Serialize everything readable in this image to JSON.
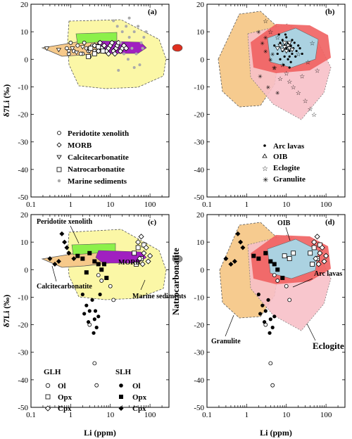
{
  "figure": {
    "x_label": "Li (ppm)",
    "y_label": "δ7Li (‰)",
    "x_ticks": [
      "0.1",
      "1",
      "10",
      "100"
    ],
    "y_ticks": [
      "20",
      "10",
      "0",
      "-10",
      "-20",
      "-30",
      "-40",
      "-50"
    ]
  },
  "chart_data": [
    {
      "panel": "(a)",
      "type": "scatter",
      "x_scale": "log",
      "xlim": [
        0.1,
        300
      ],
      "ylim": [
        -50,
        20
      ],
      "legend_position": "center",
      "legend": [
        "Peridotite xenolith",
        "MORB",
        "Calcitecarbonatite",
        "Natrocarbonatite",
        "Marine sediments"
      ],
      "series": [
        {
          "name": "Peridotite xenolith",
          "marker": "open-circle",
          "points": [
            [
              0.8,
              4
            ],
            [
              1.2,
              3
            ],
            [
              1.5,
              5
            ],
            [
              2,
              2
            ],
            [
              2.5,
              4
            ],
            [
              3,
              1
            ],
            [
              3.5,
              5
            ],
            [
              4,
              3
            ],
            [
              1,
              6
            ],
            [
              1.8,
              2
            ],
            [
              2.2,
              6
            ],
            [
              3,
              4
            ],
            [
              0.9,
              2
            ],
            [
              5,
              3
            ],
            [
              6,
              4
            ],
            [
              7,
              3
            ],
            [
              4.5,
              5
            ],
            [
              2.8,
              3
            ]
          ]
        },
        {
          "name": "MORB",
          "marker": "open-diamond",
          "points": [
            [
              3,
              4
            ],
            [
              4,
              5
            ],
            [
              5,
              3
            ],
            [
              6,
              4
            ],
            [
              7,
              5
            ],
            [
              8,
              3
            ],
            [
              9,
              4
            ],
            [
              10,
              5
            ],
            [
              12,
              3
            ],
            [
              14,
              4
            ],
            [
              15,
              5
            ],
            [
              18,
              3
            ],
            [
              20,
              4
            ],
            [
              22,
              5
            ],
            [
              5.5,
              6
            ],
            [
              9,
              2
            ],
            [
              11,
              6
            ],
            [
              13,
              2
            ],
            [
              16,
              6
            ],
            [
              25,
              4
            ]
          ]
        },
        {
          "name": "Calcitecarbonatite",
          "marker": "open-triangle",
          "points": [
            [
              0.25,
              4
            ],
            [
              0.5,
              3.5
            ],
            [
              0.9,
              3
            ],
            [
              1.4,
              2.5
            ],
            [
              2,
              4.5
            ],
            [
              3,
              3
            ],
            [
              1.1,
              4
            ]
          ]
        },
        {
          "name": "Natrocarbonatite",
          "marker": "open-square",
          "points": [
            [
              3.2,
              4
            ],
            [
              4,
              2
            ],
            [
              5,
              4.5
            ],
            [
              6.5,
              3
            ],
            [
              2.8,
              1
            ]
          ]
        },
        {
          "name": "Marine sediments",
          "marker": "gray-dot",
          "points": [
            [
              12,
              14
            ],
            [
              15,
              12
            ],
            [
              20,
              10
            ],
            [
              25,
              12
            ],
            [
              30,
              8
            ],
            [
              40,
              10
            ],
            [
              50,
              12
            ],
            [
              60,
              6
            ],
            [
              30,
              15
            ],
            [
              18,
              6
            ],
            [
              35,
              4
            ],
            [
              45,
              2
            ],
            [
              70,
              8
            ],
            [
              22,
              2
            ],
            [
              28,
              0
            ],
            [
              55,
              -2
            ],
            [
              16,
              -4
            ],
            [
              40,
              -3
            ],
            [
              65,
              4
            ],
            [
              80,
              10
            ]
          ]
        }
      ]
    },
    {
      "panel": "(b)",
      "type": "scatter",
      "x_scale": "log",
      "xlim": [
        0.1,
        300
      ],
      "ylim": [
        -50,
        20
      ],
      "legend_position": "center",
      "legend": [
        "Arc lavas",
        "OIB",
        "Eclogite",
        "Granulite"
      ],
      "series": [
        {
          "name": "Arc lavas",
          "marker": "small-dot",
          "points": [
            [
              5,
              5
            ],
            [
              6,
              4
            ],
            [
              7,
              6
            ],
            [
              8,
              3
            ],
            [
              9,
              5
            ],
            [
              10,
              4
            ],
            [
              11,
              6
            ],
            [
              12,
              3
            ],
            [
              13,
              5
            ],
            [
              14,
              2
            ],
            [
              15,
              4
            ],
            [
              16,
              6
            ],
            [
              18,
              3
            ],
            [
              20,
              5
            ],
            [
              6,
              2
            ],
            [
              8,
              7
            ],
            [
              10,
              8
            ],
            [
              12,
              1
            ],
            [
              14,
              7
            ],
            [
              9,
              1
            ],
            [
              7,
              0
            ],
            [
              11,
              0
            ],
            [
              13,
              -1
            ],
            [
              17,
              1
            ],
            [
              22,
              4
            ],
            [
              25,
              2
            ],
            [
              6.5,
              9
            ],
            [
              9.5,
              9
            ],
            [
              12,
              -3
            ],
            [
              8.5,
              -2
            ]
          ]
        },
        {
          "name": "OIB",
          "marker": "open-triangle",
          "points": [
            [
              6,
              4
            ],
            [
              7,
              5
            ],
            [
              8,
              3.5
            ],
            [
              9,
              4.5
            ],
            [
              10,
              3
            ],
            [
              11,
              5
            ],
            [
              12,
              4
            ],
            [
              14,
              3.5
            ],
            [
              9,
              6
            ],
            [
              12,
              6
            ]
          ]
        },
        {
          "name": "Eclogite",
          "marker": "open-star",
          "points": [
            [
              3,
              14
            ],
            [
              4,
              10
            ],
            [
              6,
              8
            ],
            [
              8,
              -2
            ],
            [
              10,
              -5
            ],
            [
              12,
              -8
            ],
            [
              15,
              -10
            ],
            [
              20,
              -12
            ],
            [
              25,
              -6
            ],
            [
              30,
              -15
            ],
            [
              40,
              -18
            ],
            [
              50,
              -20
            ],
            [
              60,
              -4
            ],
            [
              20,
              2
            ],
            [
              35,
              -1
            ],
            [
              45,
              6
            ],
            [
              5,
              -3
            ],
            [
              7,
              -7
            ]
          ]
        },
        {
          "name": "Granulite",
          "marker": "cross-star",
          "points": [
            [
              2,
              10
            ],
            [
              2.5,
              6
            ],
            [
              3,
              3
            ],
            [
              4,
              0
            ],
            [
              5,
              -3
            ],
            [
              2.2,
              -6
            ],
            [
              3.5,
              -10
            ],
            [
              4.5,
              2
            ],
            [
              6,
              -12
            ],
            [
              3,
              8
            ]
          ]
        }
      ]
    },
    {
      "panel": "(c)",
      "type": "scatter",
      "x_scale": "log",
      "xlim": [
        0.1,
        300
      ],
      "ylim": [
        -50,
        20
      ],
      "legend_groups": [
        "GLH",
        "SLH"
      ],
      "legend": [
        "Ol",
        "Opx",
        "Cpx"
      ],
      "annotations": [
        "Peridotite xenolith",
        "MORB",
        "Calcitecarbonatite",
        "Marine sediments",
        "Natrocarbonatite"
      ],
      "series": [
        {
          "name": "GLH Ol",
          "marker": "open-circle",
          "points": [
            [
              5,
              -2
            ],
            [
              6,
              -4
            ],
            [
              8,
              -3
            ],
            [
              10,
              -6
            ],
            [
              3,
              -20
            ],
            [
              4,
              -34
            ],
            [
              4.5,
              -42
            ],
            [
              12,
              -11
            ]
          ]
        },
        {
          "name": "GLH Opx",
          "marker": "open-square",
          "points": [
            [
              40,
              6
            ],
            [
              50,
              8
            ],
            [
              60,
              4
            ],
            [
              45,
              2
            ],
            [
              70,
              9
            ]
          ]
        },
        {
          "name": "GLH Cpx",
          "marker": "open-diamond",
          "points": [
            [
              50,
              10
            ],
            [
              60,
              12
            ],
            [
              70,
              6
            ],
            [
              80,
              8
            ],
            [
              90,
              3
            ],
            [
              100,
              5
            ],
            [
              65,
              2
            ],
            [
              55,
              4
            ]
          ]
        },
        {
          "name": "SLH Ol",
          "marker": "filled-circle",
          "points": [
            [
              2,
              -9
            ],
            [
              2.5,
              -13
            ],
            [
              3,
              -15
            ],
            [
              3.5,
              -11
            ],
            [
              4,
              -18
            ],
            [
              4.5,
              -21
            ],
            [
              5,
              -17
            ],
            [
              2.8,
              -19
            ],
            [
              3.8,
              -23
            ],
            [
              2.2,
              -16
            ],
            [
              5.5,
              -9
            ],
            [
              4.2,
              -15
            ]
          ]
        },
        {
          "name": "SLH Opx",
          "marker": "filled-square",
          "points": [
            [
              1.5,
              5
            ],
            [
              2,
              4
            ],
            [
              3,
              6
            ],
            [
              4,
              3
            ],
            [
              5,
              2
            ],
            [
              6,
              0
            ],
            [
              8,
              -3
            ],
            [
              7,
              2
            ],
            [
              2.5,
              -1
            ]
          ]
        },
        {
          "name": "SLH Cpx",
          "marker": "filled-diamond",
          "points": [
            [
              0.3,
              4
            ],
            [
              0.4,
              2
            ],
            [
              0.5,
              3
            ],
            [
              0.6,
              13
            ],
            [
              0.7,
              10
            ],
            [
              0.8,
              8
            ],
            [
              0.9,
              6
            ],
            [
              1.2,
              4
            ]
          ]
        }
      ]
    },
    {
      "panel": "(d)",
      "type": "scatter",
      "x_scale": "log",
      "xlim": [
        0.1,
        300
      ],
      "ylim": [
        -50,
        20
      ],
      "annotations": [
        "OIB",
        "Arc lavas",
        "Granulite",
        "Eclogite",
        "Natrocarbonatite"
      ],
      "series": [
        {
          "name": "GLH Ol",
          "marker": "open-circle",
          "points": [
            [
              5,
              -2
            ],
            [
              6,
              -4
            ],
            [
              8,
              -3
            ],
            [
              10,
              -6
            ],
            [
              3,
              -20
            ],
            [
              4,
              -34
            ],
            [
              4.5,
              -42
            ],
            [
              12,
              -11
            ]
          ]
        },
        {
          "name": "GLH Opx",
          "marker": "open-square",
          "points": [
            [
              40,
              6
            ],
            [
              50,
              8
            ],
            [
              60,
              4
            ],
            [
              45,
              2
            ],
            [
              70,
              9
            ],
            [
              9,
              5
            ],
            [
              12,
              4
            ],
            [
              15,
              6
            ]
          ]
        },
        {
          "name": "GLH Cpx",
          "marker": "open-diamond",
          "points": [
            [
              50,
              10
            ],
            [
              60,
              12
            ],
            [
              70,
              6
            ],
            [
              80,
              8
            ],
            [
              90,
              3
            ],
            [
              100,
              5
            ],
            [
              65,
              2
            ],
            [
              55,
              4
            ]
          ]
        },
        {
          "name": "SLH Ol",
          "marker": "filled-circle",
          "points": [
            [
              2,
              -9
            ],
            [
              2.5,
              -13
            ],
            [
              3,
              -15
            ],
            [
              3.5,
              -11
            ],
            [
              4,
              -18
            ],
            [
              4.5,
              -21
            ],
            [
              5,
              -17
            ],
            [
              2.8,
              -19
            ],
            [
              3.8,
              -23
            ],
            [
              2.2,
              -16
            ]
          ]
        },
        {
          "name": "SLH Opx",
          "marker": "filled-square",
          "points": [
            [
              1.5,
              5
            ],
            [
              2,
              4
            ],
            [
              3,
              6
            ],
            [
              4,
              3
            ],
            [
              5,
              2
            ],
            [
              6,
              0
            ],
            [
              8,
              -3
            ]
          ]
        },
        {
          "name": "SLH Cpx",
          "marker": "filled-diamond",
          "points": [
            [
              0.3,
              4
            ],
            [
              0.4,
              2
            ],
            [
              0.5,
              3
            ],
            [
              0.6,
              13
            ],
            [
              0.7,
              10
            ],
            [
              0.8,
              8
            ]
          ]
        }
      ]
    }
  ],
  "colors": {
    "yellow_field": "#fbf7a6",
    "orange_field": "#f6c98a",
    "green_field": "#8cf04a",
    "purple_field": "#a020c0",
    "red_field": "#f06060",
    "blue_field": "#a8d8e8",
    "pink_field": "#f8c0c8",
    "natro_blob": "#e03020",
    "natro_blob_gray": "#9a9a9a"
  }
}
